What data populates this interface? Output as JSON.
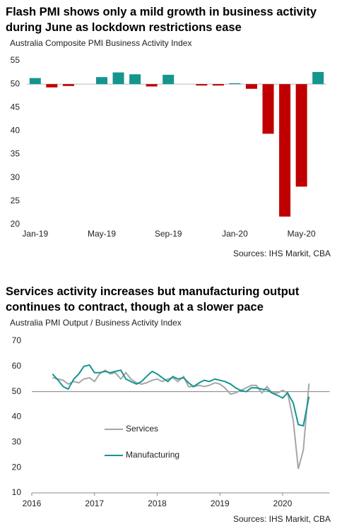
{
  "chart_data": [
    {
      "type": "bar",
      "title": "Flash PMI shows only a mild growth in business activity during June as lockdown restrictions ease",
      "subtitle": "Australia Composite PMI Business Activity Index",
      "source": "Sources: IHS Markit, CBA",
      "categories": [
        "Jan-19",
        null,
        null,
        null,
        "May-19",
        null,
        null,
        null,
        "Sep-19",
        null,
        null,
        null,
        "Jan-20",
        null,
        null,
        null,
        "May-20",
        null
      ],
      "values": [
        51.3,
        49.3,
        49.6,
        50.0,
        51.5,
        52.5,
        52.1,
        49.5,
        52.0,
        50.0,
        49.7,
        49.7,
        50.2,
        49.0,
        39.4,
        21.7,
        28.1,
        52.6
      ],
      "baseline": 50,
      "color_above": "#14968f",
      "color_below": "#c00000",
      "ylim": [
        20,
        55
      ],
      "yticks": [
        20,
        25,
        30,
        35,
        40,
        45,
        50,
        55
      ],
      "grid": false
    },
    {
      "type": "line",
      "title": "Services activity increases but manufacturing output continues to contract, though at a slower pace",
      "subtitle": "Australia PMI Output / Business Activity Index",
      "source": "Sources: IHS Markit, CBA",
      "x": [
        2016.33,
        2016.42,
        2016.5,
        2016.58,
        2016.67,
        2016.75,
        2016.83,
        2016.92,
        2017,
        2017.08,
        2017.17,
        2017.25,
        2017.33,
        2017.42,
        2017.5,
        2017.58,
        2017.67,
        2017.75,
        2017.83,
        2017.92,
        2018,
        2018.08,
        2018.17,
        2018.25,
        2018.33,
        2018.42,
        2018.5,
        2018.58,
        2018.67,
        2018.75,
        2018.83,
        2018.92,
        2019,
        2019.08,
        2019.17,
        2019.25,
        2019.33,
        2019.42,
        2019.5,
        2019.58,
        2019.67,
        2019.75,
        2019.83,
        2019.92,
        2020,
        2020.08,
        2020.17,
        2020.25,
        2020.33,
        2020.42
      ],
      "series": [
        {
          "name": "Services",
          "color": "#a6a6a6",
          "values": [
            55.5,
            55,
            54.5,
            53,
            54,
            53.5,
            55,
            55.5,
            54,
            57,
            58.5,
            57,
            57.5,
            55,
            57.5,
            55,
            53.5,
            53,
            53.5,
            54.5,
            55,
            54,
            55,
            55.5,
            54,
            56,
            52,
            52,
            52.5,
            52,
            52.5,
            53.5,
            53,
            51.5,
            49,
            49.5,
            50.5,
            51.5,
            52.5,
            52.5,
            49.5,
            52,
            49.5,
            49.5,
            50.5,
            49.5,
            38.5,
            19.5,
            26.9,
            53.2
          ]
        },
        {
          "name": "Manufacturing",
          "color": "#14968f",
          "values": [
            57,
            54.5,
            52,
            51,
            55,
            57,
            60,
            60.5,
            57.5,
            57.5,
            58,
            57.5,
            58,
            58.5,
            55,
            54,
            53,
            54,
            56,
            58,
            57,
            55.5,
            54,
            56,
            55,
            55.5,
            53.5,
            52,
            53.5,
            54.5,
            54,
            55,
            54.5,
            54,
            53,
            51.5,
            50.5,
            50,
            51.5,
            51.5,
            51,
            50.8,
            49.5,
            48.5,
            47.5,
            49.5,
            45.5,
            37,
            36.5,
            48
          ]
        }
      ],
      "reference_line": 50,
      "xlim": [
        2016,
        2020.75
      ],
      "xticks": [
        2016,
        2017,
        2018,
        2019,
        2020
      ],
      "ylim": [
        10,
        70
      ],
      "yticks": [
        10,
        20,
        30,
        40,
        50,
        60,
        70
      ],
      "grid": false
    }
  ]
}
